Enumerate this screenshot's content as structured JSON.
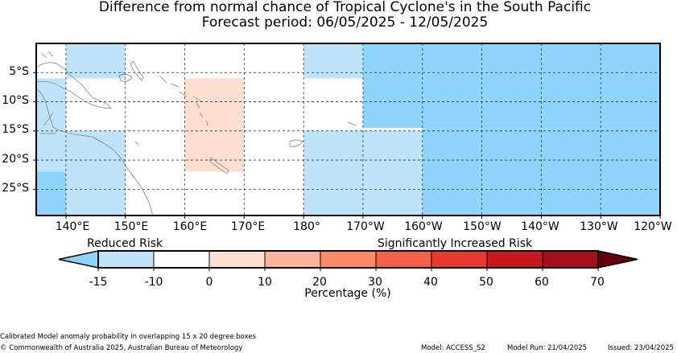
{
  "title": {
    "line1": "Difference from normal chance of Tropical Cyclone's in the South Pacific",
    "line2": "Forecast period: 06/05/2025 - 12/05/2025"
  },
  "map": {
    "lat_labels": [
      "5°S",
      "10°S",
      "15°S",
      "20°S",
      "25°S"
    ],
    "lon_labels": [
      "140°E",
      "150°E",
      "160°E",
      "170°E",
      "180°",
      "170°W",
      "160°W",
      "150°W",
      "140°W",
      "130°W",
      "120°W"
    ],
    "shading_regions": [
      {
        "lon_from": 140,
        "lon_to": 150,
        "lat_north": 0,
        "lat_south": -6,
        "color": "#bfe4fa"
      },
      {
        "lon_from": 135,
        "lon_to": 140,
        "lat_north": -6,
        "lat_south": -22,
        "color": "#bfe4fa"
      },
      {
        "lon_from": 140,
        "lon_to": 150,
        "lat_north": -15,
        "lat_south": -29.5,
        "color": "#bfe4fa"
      },
      {
        "lon_from": 135,
        "lon_to": 140,
        "lat_north": -22,
        "lat_south": -29.5,
        "color": "#8ed4fd"
      },
      {
        "lon_from": 160,
        "lon_to": 170,
        "lat_north": -6,
        "lat_south": -22,
        "color": "#fedfd2"
      },
      {
        "lon_from": 180,
        "lon_to": 190,
        "lat_north": 0,
        "lat_south": -6,
        "color": "#bfe4fa"
      },
      {
        "lon_from": 180,
        "lon_to": 200,
        "lat_north": -15,
        "lat_south": -29.5,
        "color": "#bfe4fa"
      },
      {
        "lon_from": 190,
        "lon_to": 240,
        "lat_north": 0,
        "lat_south": -14.5,
        "color": "#8ed4fd"
      },
      {
        "lon_from": 200,
        "lon_to": 240,
        "lat_north": -14.5,
        "lat_south": -29.5,
        "color": "#8ed4fd"
      }
    ]
  },
  "colorbar": {
    "left_caption": "Reduced Risk",
    "right_caption": "Significantly Increased Risk",
    "ticks": [
      "-15",
      "-10",
      "0",
      "10",
      "20",
      "30",
      "40",
      "50",
      "60",
      "70"
    ],
    "colors": [
      "#bfe4fa",
      "#ffffff",
      "#fedfd2",
      "#fcb59a",
      "#fb8b69",
      "#f4614a",
      "#e63a2e",
      "#c9181d",
      "#a10f18"
    ],
    "under_color": "#8ed4fd",
    "over_color": "#67000d",
    "xlabel": "Percentage (%)"
  },
  "footer": {
    "note": "Calibrated Model anomaly probability in overlapping 15 x 20 degree boxes",
    "copyright": "© Commonwealth of Australia 2025, Australian Bureau of Meteorology",
    "model": "Model: ACCESS_S2",
    "model_run": "Model Run: 21/04/2025",
    "issued": "Issued: 23/04/2025"
  }
}
